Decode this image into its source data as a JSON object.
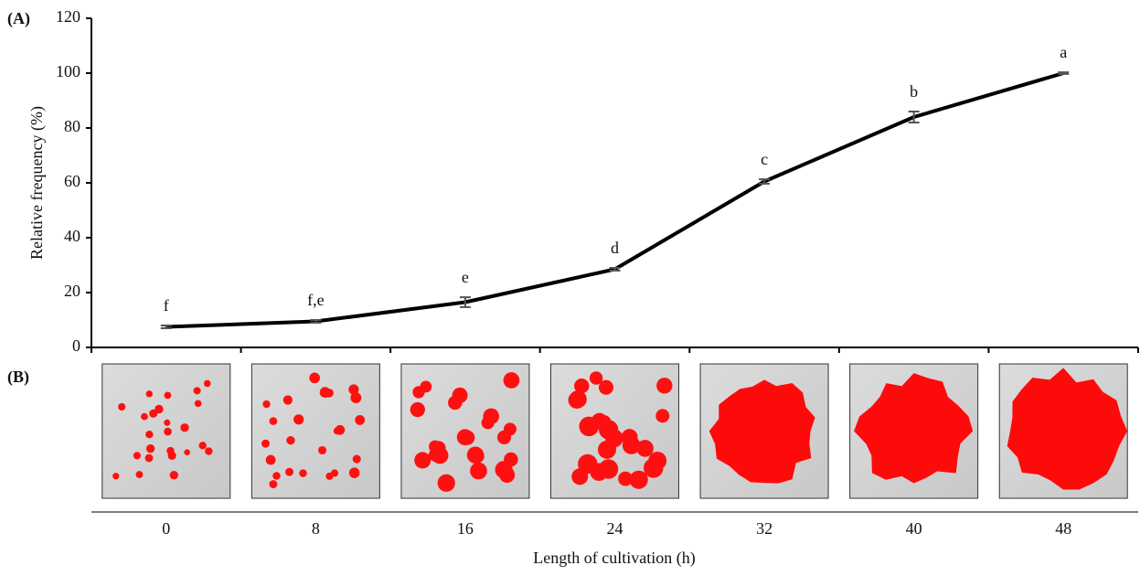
{
  "chart_data": {
    "type": "line",
    "panel_labels": [
      "(A)",
      "(B)"
    ],
    "ylabel": "Relative frequency (%)",
    "xlabel": "Length of cultivation (h)",
    "categories": [
      "0",
      "8",
      "16",
      "24",
      "32",
      "40",
      "48"
    ],
    "series": [
      {
        "color": "#000000",
        "values": [
          7.5,
          9.5,
          16.5,
          28.5,
          60.5,
          84,
          100
        ],
        "errors": [
          0.5,
          0.5,
          1.8,
          0.5,
          0.8,
          2,
          0.3
        ],
        "annotations": [
          "f",
          "f,e",
          "e",
          "d",
          "c",
          "b",
          "a"
        ]
      }
    ],
    "ylim": [
      0,
      120
    ],
    "yticks": [
      0,
      20,
      40,
      60,
      80,
      100,
      120
    ]
  }
}
